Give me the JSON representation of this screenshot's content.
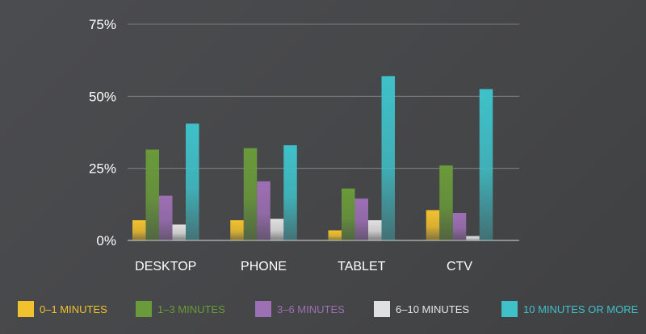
{
  "chart_data": {
    "type": "bar",
    "categories": [
      "DESKTOP",
      "PHONE",
      "TABLET",
      "CTV"
    ],
    "series": [
      {
        "name": "0–1 MINUTES",
        "color": "#f2c12e",
        "values": [
          7,
          7,
          3.5,
          10.5
        ]
      },
      {
        "name": "1–3 MINUTES",
        "color": "#6a9a3a",
        "values": [
          31.5,
          32,
          18,
          26
        ]
      },
      {
        "name": "3–6 MINUTES",
        "color": "#9d6fb5",
        "values": [
          15.5,
          20.5,
          14.5,
          9.5
        ]
      },
      {
        "name": "6–10 MINUTES",
        "color": "#e0e0e0",
        "values": [
          5.5,
          7.5,
          7,
          1.5
        ]
      },
      {
        "name": "10 MINUTES OR MORE",
        "color": "#3fc1c9",
        "values": [
          40.5,
          33,
          57,
          52.5
        ]
      }
    ],
    "yticks": [
      "0%",
      "25%",
      "50%",
      "75%"
    ],
    "ytick_values": [
      0,
      25,
      50,
      75
    ],
    "ylim": [
      0,
      75
    ],
    "grid": true,
    "legend": "bottom"
  }
}
